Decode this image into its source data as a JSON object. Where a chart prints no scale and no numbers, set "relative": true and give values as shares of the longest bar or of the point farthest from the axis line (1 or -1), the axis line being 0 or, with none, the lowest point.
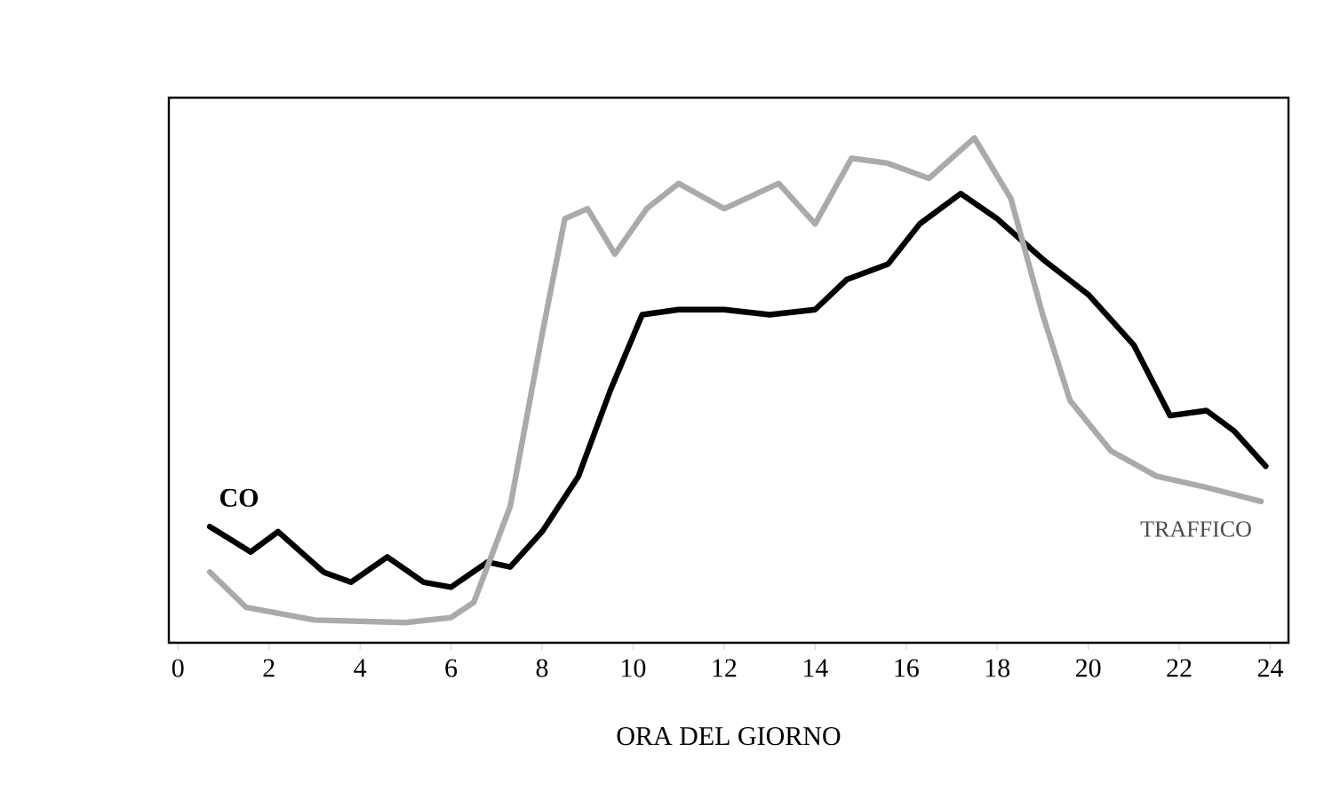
{
  "chart_data": {
    "type": "line",
    "relative": true,
    "xlabel": "ORA DEL GIORNO",
    "xlim": [
      -0.2,
      24.4
    ],
    "xticks": [
      0,
      2,
      4,
      6,
      8,
      10,
      12,
      14,
      16,
      18,
      20,
      22,
      24
    ],
    "grid": false,
    "marker": "none",
    "line_style": "solid",
    "series": [
      {
        "name": "CO",
        "color": "#000000",
        "x": [
          0.7,
          1.6,
          2.2,
          3.2,
          3.8,
          4.6,
          5.4,
          6.0,
          6.8,
          7.3,
          8,
          8.8,
          9.5,
          10.2,
          11,
          12,
          13,
          14,
          14.7,
          15.6,
          16.3,
          17.2,
          18,
          19,
          20,
          21,
          21.8,
          22.6,
          23.2,
          23.9
        ],
        "values": [
          0.23,
          0.18,
          0.22,
          0.14,
          0.12,
          0.17,
          0.12,
          0.11,
          0.16,
          0.15,
          0.22,
          0.33,
          0.5,
          0.65,
          0.66,
          0.66,
          0.65,
          0.66,
          0.72,
          0.75,
          0.83,
          0.89,
          0.84,
          0.76,
          0.69,
          0.59,
          0.45,
          0.46,
          0.42,
          0.35
        ]
      },
      {
        "name": "TRAFFICO",
        "color": "#aaaaaa",
        "x": [
          0.7,
          1.5,
          3,
          5,
          6,
          6.5,
          7.3,
          8,
          8.5,
          9,
          9.6,
          10.3,
          11,
          12,
          13.2,
          14,
          14.8,
          15.6,
          16.5,
          17.5,
          18.3,
          19,
          19.6,
          20.5,
          21.5,
          22.5,
          23.8
        ],
        "values": [
          0.14,
          0.07,
          0.045,
          0.04,
          0.05,
          0.08,
          0.27,
          0.61,
          0.84,
          0.86,
          0.77,
          0.86,
          0.91,
          0.86,
          0.91,
          0.83,
          0.96,
          0.95,
          0.92,
          1.0,
          0.88,
          0.65,
          0.48,
          0.38,
          0.33,
          0.31,
          0.28
        ]
      }
    ]
  }
}
